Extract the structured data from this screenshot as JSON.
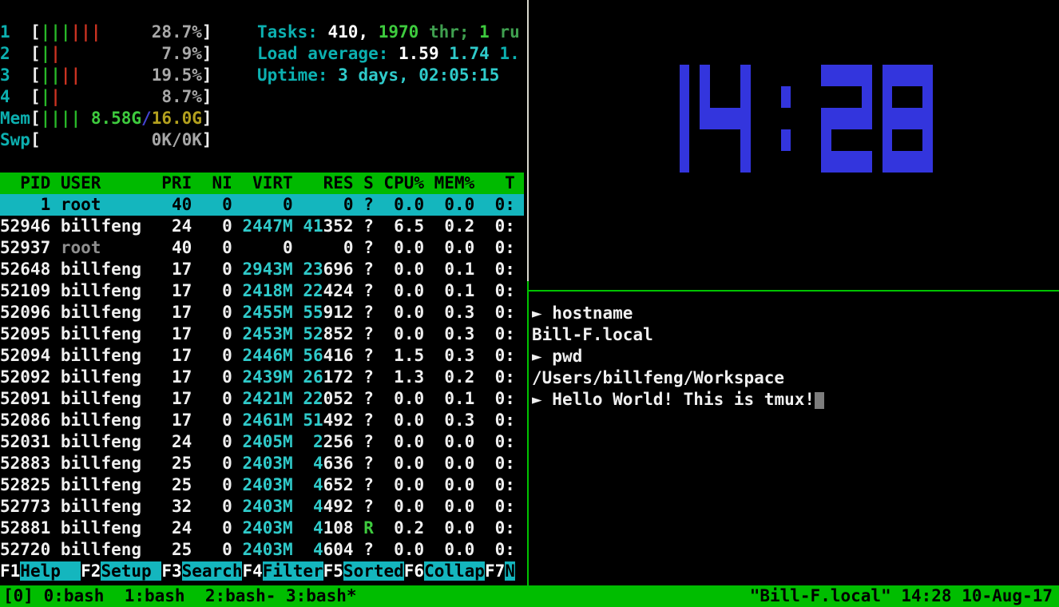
{
  "palette": {
    "background": "#000000",
    "foreground": "#f0f0f0",
    "cyan": "#0cb0b0",
    "cyan_bright": "#2fcaca",
    "green_bright": "#3ecb3e",
    "green_dim": "#3f9f4f",
    "bar_green": "#29b829",
    "bar_red": "#cc3322",
    "gray": "#a8a8a8",
    "dark_yellow": "#b3a01e",
    "blue": "#4343d1",
    "clock_blue": "#3335dd",
    "header_green_bg": "#00ba00",
    "status_green_bg": "#00bd00",
    "selection_cyan_bg": "#14b6be",
    "border_white": "#d9d9cf",
    "border_green": "#00c300",
    "cursor_gray": "#7d7d7d"
  },
  "htop": {
    "meters": {
      "cpus": [
        {
          "label": "1",
          "green_bars": 3,
          "red_bars": 3,
          "pct": "28.7%"
        },
        {
          "label": "2",
          "green_bars": 1,
          "red_bars": 1,
          "pct": "7.9%"
        },
        {
          "label": "3",
          "green_bars": 2,
          "red_bars": 2,
          "pct": "19.5%"
        },
        {
          "label": "4",
          "green_bars": 1,
          "red_bars": 1,
          "pct": "8.7%"
        }
      ],
      "mem": {
        "label": "Mem",
        "green_bars": 4,
        "used": "8.58G",
        "slash": "/",
        "total": "16.0G"
      },
      "swp": {
        "label": "Swp",
        "text": "0K/0K"
      }
    },
    "summary": {
      "lines": [
        {
          "parts": [
            {
              "t": "Tasks: ",
              "c": "cy"
            },
            {
              "t": "410, ",
              "c": "wb"
            },
            {
              "t": "1970 ",
              "c": "gb"
            },
            {
              "t": "thr; ",
              "c": "g"
            },
            {
              "t": "1 ",
              "c": "gb"
            },
            {
              "t": "ru",
              "c": "g"
            }
          ]
        },
        {
          "parts": [
            {
              "t": "Load average: ",
              "c": "cy"
            },
            {
              "t": "1.59 ",
              "c": "wb"
            },
            {
              "t": "1.74 ",
              "c": "cyb"
            },
            {
              "t": "1.",
              "c": "cy"
            }
          ]
        },
        {
          "parts": [
            {
              "t": "Uptime: ",
              "c": "cy"
            },
            {
              "t": "3 days, 02:05:15",
              "c": "cyb"
            }
          ]
        }
      ]
    },
    "table": {
      "header": "  PID USER      PRI  NI  VIRT   RES S CPU% MEM%   T",
      "rows": [
        {
          "pid": "1",
          "user": "root",
          "pri": "40",
          "ni": "0",
          "virt": "0",
          "res": "0",
          "s": "?",
          "cpu": "0.0",
          "mem": "0.0",
          "time": "0:",
          "selected": true
        },
        {
          "pid": "52946",
          "user": "billfeng",
          "pri": "24",
          "ni": "0",
          "virt": "2447M",
          "res": "41352",
          "s": "?",
          "cpu": "6.5",
          "mem": "0.2",
          "time": "0:"
        },
        {
          "pid": "52937",
          "user": "root",
          "pri": "40",
          "ni": "0",
          "virt": "0",
          "res": "0",
          "s": "?",
          "cpu": "0.0",
          "mem": "0.0",
          "time": "0:"
        },
        {
          "pid": "52648",
          "user": "billfeng",
          "pri": "17",
          "ni": "0",
          "virt": "2943M",
          "res": "23696",
          "s": "?",
          "cpu": "0.0",
          "mem": "0.1",
          "time": "0:"
        },
        {
          "pid": "52109",
          "user": "billfeng",
          "pri": "17",
          "ni": "0",
          "virt": "2418M",
          "res": "22424",
          "s": "?",
          "cpu": "0.0",
          "mem": "0.1",
          "time": "0:"
        },
        {
          "pid": "52096",
          "user": "billfeng",
          "pri": "17",
          "ni": "0",
          "virt": "2455M",
          "res": "55912",
          "s": "?",
          "cpu": "0.0",
          "mem": "0.3",
          "time": "0:"
        },
        {
          "pid": "52095",
          "user": "billfeng",
          "pri": "17",
          "ni": "0",
          "virt": "2453M",
          "res": "52852",
          "s": "?",
          "cpu": "0.0",
          "mem": "0.3",
          "time": "0:"
        },
        {
          "pid": "52094",
          "user": "billfeng",
          "pri": "17",
          "ni": "0",
          "virt": "2446M",
          "res": "56416",
          "s": "?",
          "cpu": "1.5",
          "mem": "0.3",
          "time": "0:"
        },
        {
          "pid": "52092",
          "user": "billfeng",
          "pri": "17",
          "ni": "0",
          "virt": "2439M",
          "res": "26172",
          "s": "?",
          "cpu": "1.3",
          "mem": "0.2",
          "time": "0:"
        },
        {
          "pid": "52091",
          "user": "billfeng",
          "pri": "17",
          "ni": "0",
          "virt": "2421M",
          "res": "22052",
          "s": "?",
          "cpu": "0.0",
          "mem": "0.1",
          "time": "0:"
        },
        {
          "pid": "52086",
          "user": "billfeng",
          "pri": "17",
          "ni": "0",
          "virt": "2461M",
          "res": "51492",
          "s": "?",
          "cpu": "0.0",
          "mem": "0.3",
          "time": "0:"
        },
        {
          "pid": "52031",
          "user": "billfeng",
          "pri": "24",
          "ni": "0",
          "virt": "2405M",
          "res": "2256",
          "s": "?",
          "cpu": "0.0",
          "mem": "0.0",
          "time": "0:"
        },
        {
          "pid": "52883",
          "user": "billfeng",
          "pri": "25",
          "ni": "0",
          "virt": "2403M",
          "res": "4636",
          "s": "?",
          "cpu": "0.0",
          "mem": "0.0",
          "time": "0:"
        },
        {
          "pid": "52825",
          "user": "billfeng",
          "pri": "25",
          "ni": "0",
          "virt": "2403M",
          "res": "4652",
          "s": "?",
          "cpu": "0.0",
          "mem": "0.0",
          "time": "0:"
        },
        {
          "pid": "52773",
          "user": "billfeng",
          "pri": "32",
          "ni": "0",
          "virt": "2403M",
          "res": "4492",
          "s": "?",
          "cpu": "0.0",
          "mem": "0.0",
          "time": "0:"
        },
        {
          "pid": "52881",
          "user": "billfeng",
          "pri": "24",
          "ni": "0",
          "virt": "2403M",
          "res": "4108",
          "s": "R",
          "cpu": "0.2",
          "mem": "0.0",
          "time": "0:"
        },
        {
          "pid": "52720",
          "user": "billfeng",
          "pri": "25",
          "ni": "0",
          "virt": "2403M",
          "res": "4604",
          "s": "?",
          "cpu": "0.0",
          "mem": "0.0",
          "time": "0:"
        }
      ]
    },
    "fkeys": [
      {
        "key": "F1",
        "label": "Help  "
      },
      {
        "key": "F2",
        "label": "Setup "
      },
      {
        "key": "F3",
        "label": "Search"
      },
      {
        "key": "F4",
        "label": "Filter"
      },
      {
        "key": "F5",
        "label": "Sorted"
      },
      {
        "key": "F6",
        "label": "Collap"
      },
      {
        "key": "F7",
        "label": "N"
      }
    ]
  },
  "clock": {
    "time": "14:28"
  },
  "shell": {
    "prompt_char": "►",
    "lines": [
      {
        "prompt": true,
        "text": "hostname"
      },
      {
        "prompt": false,
        "text": "Bill-F.local"
      },
      {
        "prompt": true,
        "text": "pwd"
      },
      {
        "prompt": false,
        "text": "/Users/billfeng/Workspace"
      },
      {
        "prompt": true,
        "text": "Hello World! This is tmux!",
        "cursor": true
      }
    ]
  },
  "statusbar": {
    "left": "[0] 0:bash  1:bash  2:bash- 3:bash*",
    "right": "\"Bill-F.local\" 14:28 10-Aug-17"
  }
}
